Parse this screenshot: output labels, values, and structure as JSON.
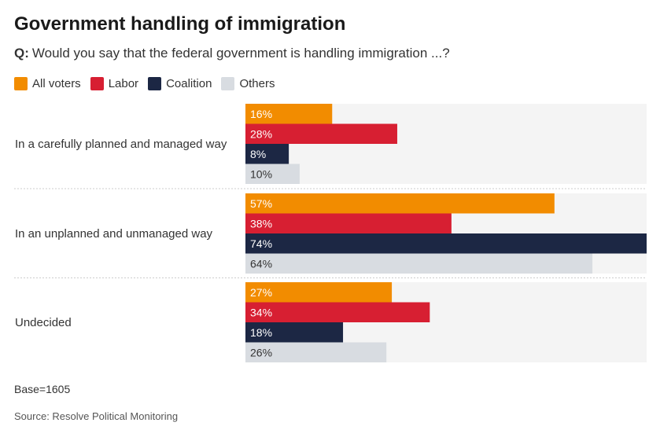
{
  "header": {
    "title": "Government handling of immigration",
    "question_prefix": "Q:",
    "question_text": "Would you say that the federal government is handling immigration ...?"
  },
  "legend": [
    {
      "label": "All voters",
      "color": "#f28c00"
    },
    {
      "label": "Labor",
      "color": "#d71f32"
    },
    {
      "label": "Coalition",
      "color": "#1c2744"
    },
    {
      "label": "Others",
      "color": "#d8dce1"
    }
  ],
  "chart_data": {
    "type": "bar",
    "orientation": "horizontal",
    "categories": [
      "In a carefully planned and managed way",
      "In an unplanned and unmanaged way",
      "Undecided"
    ],
    "series": [
      {
        "name": "All voters",
        "color": "#f28c00",
        "values": [
          16,
          57,
          27
        ],
        "labels": [
          "16%",
          "57%",
          "27%"
        ],
        "label_color": "#ffffff"
      },
      {
        "name": "Labor",
        "color": "#d71f32",
        "values": [
          28,
          38,
          34
        ],
        "labels": [
          "28%",
          "38%",
          "34%"
        ],
        "label_color": "#ffffff"
      },
      {
        "name": "Coalition",
        "color": "#1c2744",
        "values": [
          8,
          74,
          18
        ],
        "labels": [
          "8%",
          "74%",
          "18%"
        ],
        "label_color": "#ffffff"
      },
      {
        "name": "Others",
        "color": "#d8dce1",
        "values": [
          10,
          64,
          26
        ],
        "labels": [
          "10%",
          "64%",
          "26%"
        ],
        "label_color": "#333333"
      }
    ],
    "xlim": [
      0,
      74
    ],
    "grid": false,
    "legend_position": "top-left"
  },
  "footer": {
    "base": "Base=1605",
    "source": "Source: Resolve Political Monitoring"
  }
}
